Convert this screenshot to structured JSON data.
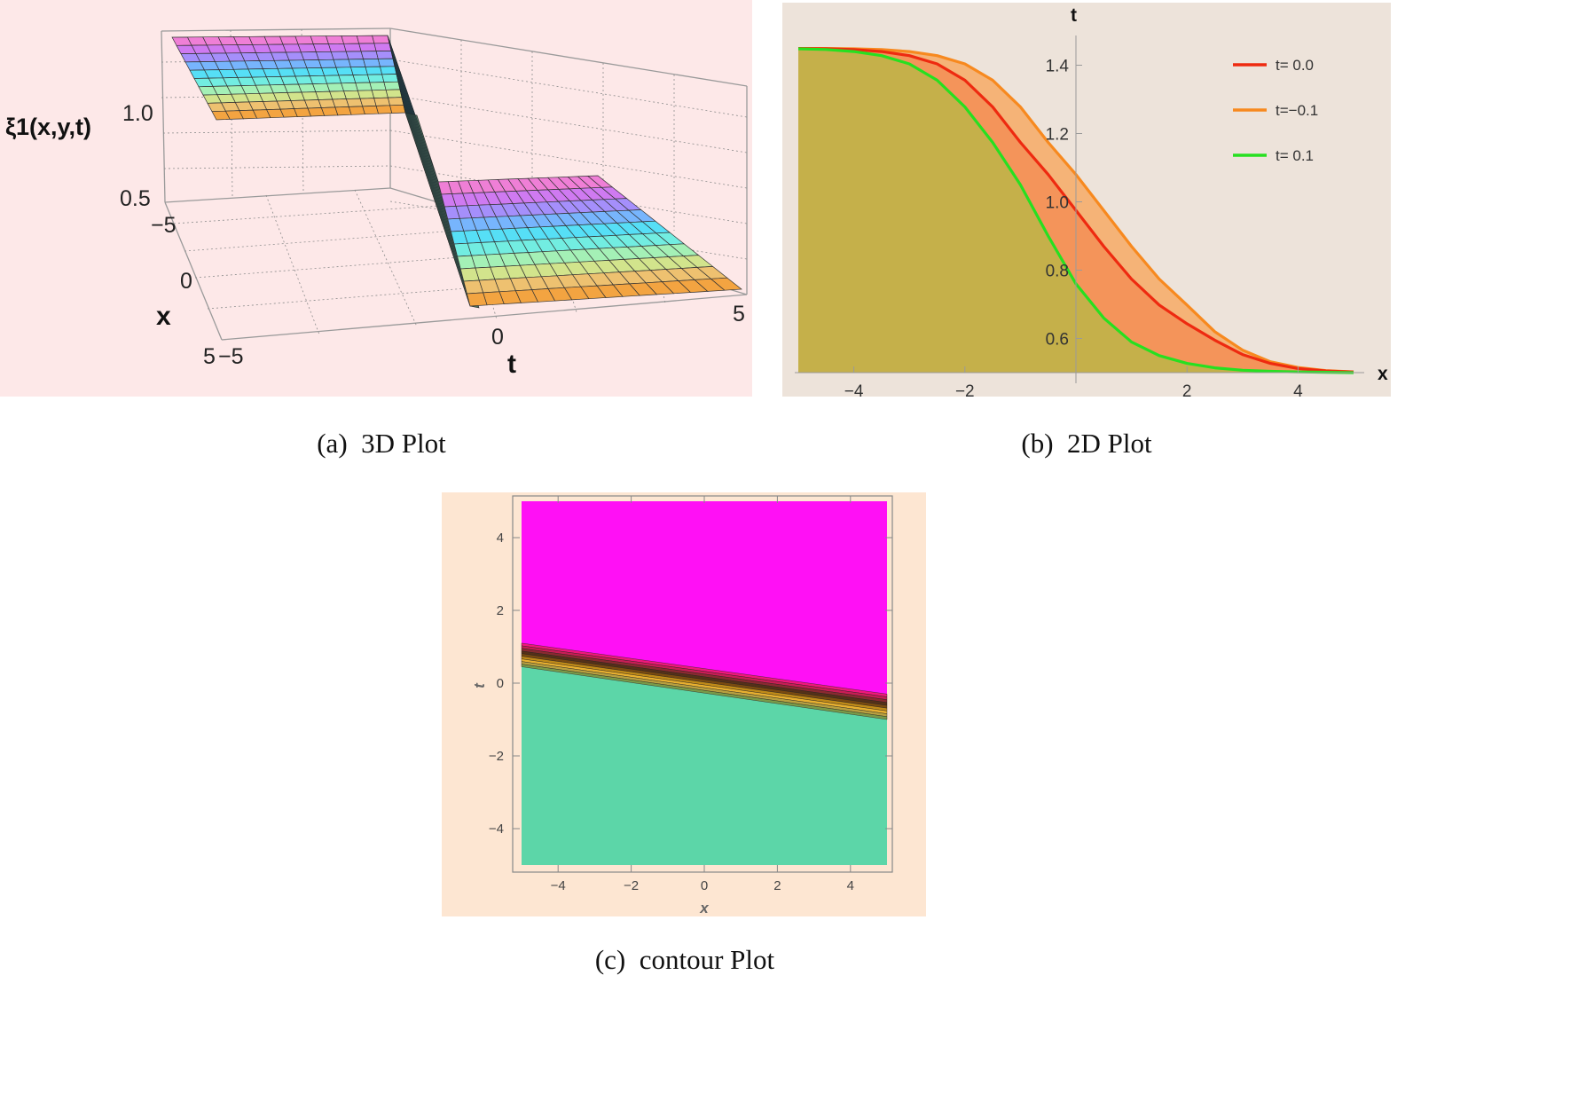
{
  "chart_data": [
    {
      "type": "surface3d",
      "panel_caption": "(a)  3D Plot",
      "zlabel": "ξ1(x,y,t)",
      "xlabel": "x",
      "tlabel": "t",
      "x_ticks": [
        "−5",
        "0",
        "5"
      ],
      "t_ticks": [
        "−5",
        "0",
        "5"
      ],
      "z_ticks": [
        "0.5",
        "1.0"
      ],
      "x_range": [
        -5,
        5
      ],
      "t_range": [
        -5,
        5
      ],
      "z_range": [
        0.5,
        1.45
      ],
      "high_plateau": 1.45,
      "low_plateau": 0.5,
      "background": "#fde8e8"
    },
    {
      "type": "area",
      "panel_caption": "(b)  2D Plot",
      "xlabel": "x",
      "ylabel": "t",
      "xlim": [
        -5,
        5
      ],
      "ylim": [
        0.5,
        1.5
      ],
      "x_ticks": [
        "−4",
        "−2",
        "2",
        "4"
      ],
      "x_tick_values": [
        -4,
        -2,
        2,
        4
      ],
      "y_ticks": [
        "0.6",
        "0.8",
        "1.0",
        "1.2",
        "1.4"
      ],
      "y_tick_values": [
        0.6,
        0.8,
        1.0,
        1.2,
        1.4
      ],
      "legend": "right",
      "background": "#ede3da",
      "x": [
        -5,
        -4.5,
        -4,
        -3.5,
        -3,
        -2.5,
        -2,
        -1.5,
        -1,
        -0.5,
        0,
        0.5,
        1,
        1.5,
        2,
        2.5,
        3,
        3.5,
        4,
        4.5,
        5
      ],
      "series": [
        {
          "name": "t= 0.0",
          "color": "#ee2a10",
          "fill": "#f4945a",
          "values": [
            1.449,
            1.448,
            1.446,
            1.44,
            1.428,
            1.404,
            1.356,
            1.278,
            1.174,
            1.08,
            0.975,
            0.87,
            0.774,
            0.698,
            0.643,
            0.595,
            0.553,
            0.527,
            0.512,
            0.505,
            0.502
          ]
        },
        {
          "name": "t=−0.1",
          "color": "#f7891f",
          "fill": "#f5b377",
          "values": [
            1.449,
            1.449,
            1.448,
            1.446,
            1.44,
            1.428,
            1.404,
            1.356,
            1.278,
            1.174,
            1.08,
            0.975,
            0.87,
            0.774,
            0.698,
            0.62,
            0.566,
            0.532,
            0.515,
            0.506,
            0.502
          ]
        },
        {
          "name": "t= 0.1",
          "color": "#26e020",
          "fill": "#c5b04a",
          "values": [
            1.448,
            1.446,
            1.44,
            1.428,
            1.404,
            1.356,
            1.278,
            1.174,
            1.05,
            0.9,
            0.76,
            0.66,
            0.59,
            0.55,
            0.527,
            0.514,
            0.507,
            0.504,
            0.502,
            0.501,
            0.5
          ]
        }
      ]
    },
    {
      "type": "contour",
      "panel_caption": "(c)  contour Plot",
      "xlabel": "x",
      "ylabel": "t",
      "xlim": [
        -5,
        5
      ],
      "ylim": [
        -5,
        5
      ],
      "x_ticks": [
        "−4",
        "−2",
        "0",
        "2",
        "4"
      ],
      "x_tick_values": [
        -4,
        -2,
        0,
        2,
        4
      ],
      "y_ticks": [
        "4",
        "2",
        "0",
        "−2",
        "−4"
      ],
      "y_tick_values": [
        4,
        2,
        0,
        -2,
        -4
      ],
      "upper_color": "#ff10f5",
      "lower_color": "#5cd6a8",
      "front_left_t": [
        1.1,
        0.45
      ],
      "front_right_t": [
        -0.3,
        -1.0
      ],
      "background": "#fde6d2"
    }
  ]
}
